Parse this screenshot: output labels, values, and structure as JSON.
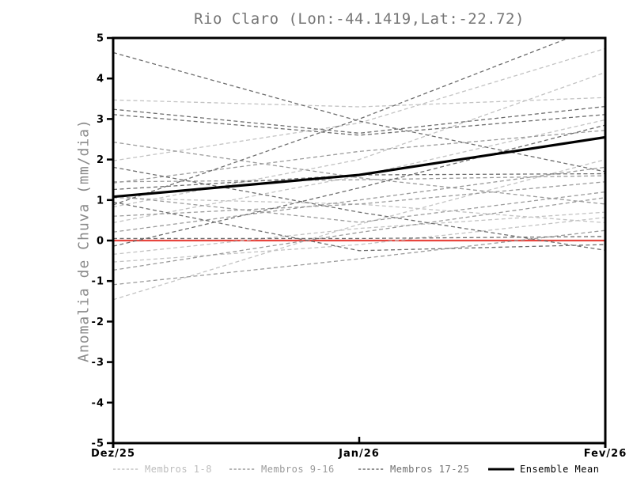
{
  "chart_data": {
    "type": "line",
    "title": "Rio Claro (Lon:-44.1419,Lat:-22.72)",
    "ylabel": "Anomalia de Chuva (mm/dia)",
    "xlabel": "",
    "x_categories": [
      "Dez/25",
      "Jan/26",
      "Fev/26"
    ],
    "ylim": [
      -5,
      5
    ],
    "yticks": [
      5,
      4,
      3,
      2,
      1,
      0,
      -1,
      -2,
      -3,
      -4,
      -5
    ],
    "grid": false,
    "legend_position": "bottom",
    "zero_line": {
      "y": 0,
      "color": "#e8453e"
    },
    "axis_color": "#000000",
    "series": [
      {
        "name": "Membros 1-8",
        "color": "#c3c3c3",
        "style": "dashed",
        "width": 1.3,
        "members": [
          [
            3.47,
            3.3,
            3.53
          ],
          [
            1.97,
            2.9,
            4.74
          ],
          [
            0.83,
            2.0,
            4.15
          ],
          [
            0.44,
            1.6,
            2.98
          ],
          [
            -0.34,
            0.3,
            0.7
          ],
          [
            -0.53,
            -0.1,
            0.57
          ],
          [
            -1.46,
            0.4,
            2.0
          ],
          [
            1.05,
            0.9,
            0.44
          ]
        ]
      },
      {
        "name": "Membros 9-16",
        "color": "#9b9b9b",
        "style": "dashed",
        "width": 1.3,
        "members": [
          [
            2.43,
            1.55,
            0.9
          ],
          [
            1.42,
            2.2,
            2.72
          ],
          [
            1.45,
            1.5,
            1.6
          ],
          [
            0.21,
            1.0,
            1.81
          ],
          [
            -0.73,
            0.2,
            1.06
          ],
          [
            -1.09,
            -0.45,
            0.25
          ],
          [
            0.6,
            0.9,
            1.45
          ],
          [
            1.1,
            0.45,
            1.2
          ]
        ]
      },
      {
        "name": "Membros 17-25",
        "color": "#6d6d6d",
        "style": "dashed",
        "width": 1.3,
        "members": [
          [
            4.64,
            2.95,
            1.7
          ],
          [
            3.24,
            2.65,
            3.31
          ],
          [
            3.11,
            2.6,
            3.11
          ],
          [
            1.81,
            0.7,
            -0.24
          ],
          [
            0.88,
            3.0,
            5.35
          ],
          [
            1.26,
            1.62,
            1.65
          ],
          [
            0.05,
            0.05,
            0.1
          ],
          [
            -0.14,
            1.3,
            2.85
          ],
          [
            0.95,
            -0.25,
            -0.1
          ]
        ]
      },
      {
        "name": "Ensemble Mean",
        "color": "#000000",
        "style": "solid",
        "width": 3.2,
        "members": [
          [
            1.08,
            1.62,
            2.55
          ]
        ]
      }
    ],
    "legend": [
      {
        "label": "Membros 1-8",
        "line_color": "#c3c3c3",
        "text_color": "#bdbdbd",
        "style": "dashed"
      },
      {
        "label": "Membros 9-16",
        "line_color": "#9b9b9b",
        "text_color": "#9a9a9a",
        "style": "dashed"
      },
      {
        "label": "Membros 17-25",
        "line_color": "#6d6d6d",
        "text_color": "#6f6f6f",
        "style": "dashed"
      },
      {
        "label": "Ensemble Mean",
        "line_color": "#000000",
        "text_color": "#000000",
        "style": "solid"
      }
    ]
  }
}
